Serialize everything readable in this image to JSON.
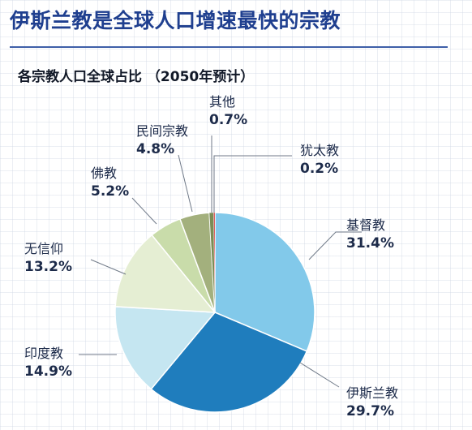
{
  "header": {
    "title": "伊斯兰教是全球人口增速最快的宗教",
    "subtitle": "各宗教人口全球占比 （2050年预计）"
  },
  "colors": {
    "title": "#1f3f8f",
    "rule": "#3e5fa8",
    "leader": "#707a88"
  },
  "chart_data": {
    "type": "pie",
    "title": "各宗教人口全球占比 （2050年预计）",
    "start": "12 o'clock",
    "direction": "clockwise",
    "slices": [
      {
        "label": "基督教",
        "value": 31.4,
        "display": "31.4%",
        "color": "#82c9ea"
      },
      {
        "label": "伊斯兰教",
        "value": 29.7,
        "display": "29.7%",
        "color": "#1f7dbd"
      },
      {
        "label": "印度教",
        "value": 14.9,
        "display": "14.9%",
        "color": "#c5e6f1"
      },
      {
        "label": "无信仰",
        "value": 13.2,
        "display": "13.2%",
        "color": "#e5eed3"
      },
      {
        "label": "佛教",
        "value": 5.2,
        "display": "5.2%",
        "color": "#c9dcaa"
      },
      {
        "label": "民间宗教",
        "value": 4.8,
        "display": "4.8%",
        "color": "#a3b07d"
      },
      {
        "label": "其他",
        "value": 0.7,
        "display": "0.7%",
        "color": "#7a8c55"
      },
      {
        "label": "犹太教",
        "value": 0.2,
        "display": "0.2%",
        "color": "#d6383a"
      }
    ]
  }
}
